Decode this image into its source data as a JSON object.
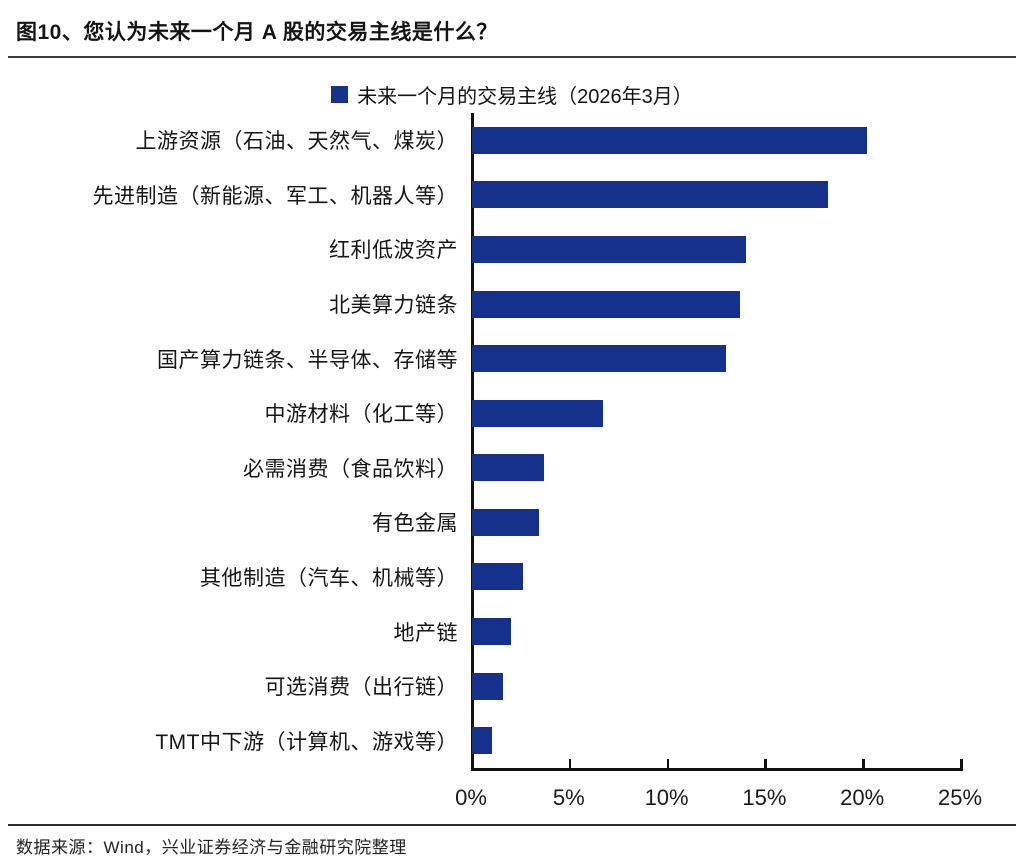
{
  "header": {
    "title": "图10、您认为未来一个月 A 股的交易主线是什么？"
  },
  "legend": {
    "label": "未来一个月的交易主线（2026年3月）",
    "marker_color": "#16318C"
  },
  "chart_data": {
    "type": "bar",
    "orientation": "horizontal",
    "title": "未来一个月的交易主线（2026年3月）",
    "categories": [
      "上游资源（石油、天然气、煤炭）",
      "先进制造（新能源、军工、机器人等）",
      "红利低波资产",
      "北美算力链条",
      "国产算力链条、半导体、存储等",
      "中游材料（化工等）",
      "必需消费（食品饮料）",
      "有色金属",
      "其他制造（汽车、机械等）",
      "地产链",
      "可选消费（出行链）",
      "TMT中下游（计算机、游戏等）"
    ],
    "values": [
      20.2,
      18.2,
      14.0,
      13.7,
      13.0,
      6.7,
      3.7,
      3.4,
      2.6,
      2.0,
      1.6,
      1.0
    ],
    "unit": "%",
    "xlim": [
      0,
      25
    ],
    "xticks": [
      0,
      5,
      10,
      15,
      20,
      25
    ],
    "xtick_labels": [
      "0%",
      "5%",
      "10%",
      "15%",
      "20%",
      "25%"
    ],
    "bar_color": "#16318C",
    "axis_color": "#111111",
    "grid": false,
    "legend_position": "top-center"
  },
  "footer": {
    "source": "数据来源：Wind，兴业证券经济与金融研究院整理"
  }
}
